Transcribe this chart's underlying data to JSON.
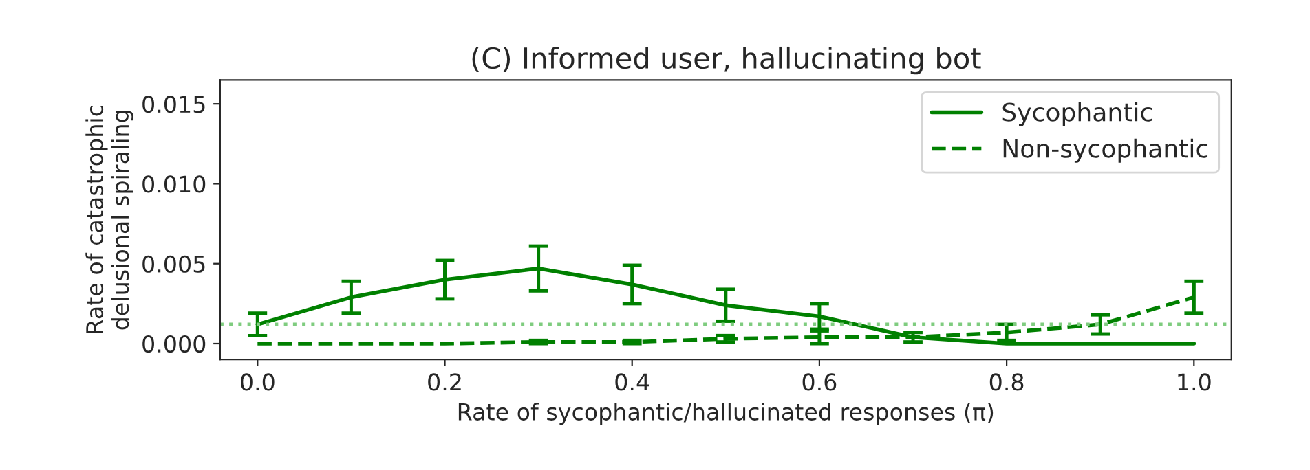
{
  "chart_data": {
    "type": "line",
    "title": "(C) Informed user, hallucinating bot",
    "xlabel": "Rate of sycophantic/hallucinated responses (π)",
    "ylabel": "Rate of catastrophic\ndelusional spiraling",
    "x": [
      0.0,
      0.1,
      0.2,
      0.3,
      0.4,
      0.5,
      0.6,
      0.7,
      0.8,
      0.9,
      1.0
    ],
    "series": [
      {
        "name": "Sycophantic",
        "color": "#008000",
        "line_style": "solid",
        "values": [
          0.0012,
          0.0029,
          0.004,
          0.0047,
          0.0037,
          0.0024,
          0.0017,
          0.0004,
          0.0,
          0.0,
          0.0
        ],
        "errors": [
          0.0007,
          0.001,
          0.0012,
          0.0014,
          0.0012,
          0.001,
          0.0008,
          null,
          null,
          null,
          null
        ]
      },
      {
        "name": "Non-sycophantic",
        "color": "#008000",
        "line_style": "dashed",
        "values": [
          0.0,
          0.0,
          0.0,
          0.0001,
          0.0001,
          0.0003,
          0.0004,
          0.0004,
          0.0007,
          0.0012,
          0.0029
        ],
        "errors": [
          null,
          null,
          null,
          0.0001,
          0.0001,
          0.0002,
          0.0004,
          0.0003,
          0.0005,
          0.0006,
          0.001
        ]
      }
    ],
    "ref_lines": [
      {
        "axis": "y",
        "value": 0.0012,
        "color": "#7fcc7f",
        "line_style": "dotted"
      }
    ],
    "xlim": [
      -0.04,
      1.04
    ],
    "ylim": [
      -0.001,
      0.0165
    ],
    "xticks": [
      {
        "value": 0.0,
        "label": "0.0"
      },
      0.2,
      0.4,
      0.6,
      0.8,
      {
        "value": 1.0,
        "label": "1.0"
      }
    ],
    "yticks": [
      {
        "value": 0.0,
        "label": "0.000"
      },
      {
        "value": 0.005,
        "label": "0.005"
      },
      {
        "value": 0.01,
        "label": "0.010"
      },
      {
        "value": 0.015,
        "label": "0.015"
      }
    ],
    "legend": "top right",
    "grid": false
  }
}
